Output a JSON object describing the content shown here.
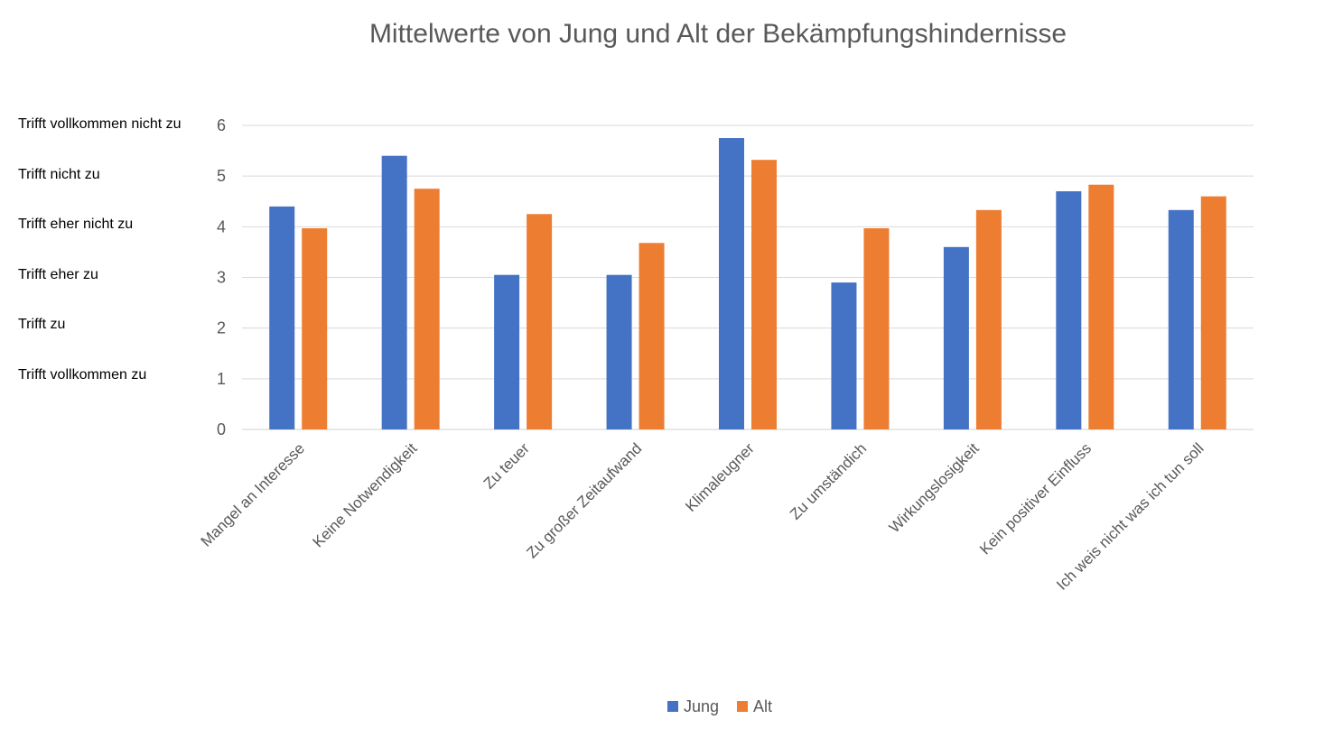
{
  "chart_data": {
    "type": "bar",
    "title": "Mittelwerte von Jung und Alt der Bekämpfungshindernisse",
    "xlabel": "",
    "ylabel": "",
    "ylim": [
      0,
      6
    ],
    "yticks": [
      "0",
      "1",
      "2",
      "3",
      "4",
      "5",
      "6"
    ],
    "y_annotations": [
      "Trifft vollkommen nicht zu",
      "Trifft nicht zu",
      "Trifft eher nicht zu",
      "Trifft eher zu",
      "Trifft zu",
      "Trifft vollkommen zu"
    ],
    "categories": [
      "Mangel an Interesse",
      "Keine Notwendigkeit",
      "Zu teuer",
      "Zu großer Zeitaufwand",
      "Klimaleugner",
      "Zu umständich",
      "Wirkungslosigkeit",
      "Kein positiver Einfluss",
      "Ich weis nicht was ich tun soll"
    ],
    "series": [
      {
        "name": "Jung",
        "color": "#4472C4",
        "values": [
          4.4,
          5.4,
          3.05,
          3.05,
          5.75,
          2.9,
          3.6,
          4.7,
          4.33
        ]
      },
      {
        "name": "Alt",
        "color": "#ED7D31",
        "values": [
          3.97,
          4.75,
          4.25,
          3.68,
          5.32,
          3.97,
          4.33,
          4.83,
          4.6
        ]
      }
    ],
    "grid": true,
    "legend_position": "bottom"
  }
}
